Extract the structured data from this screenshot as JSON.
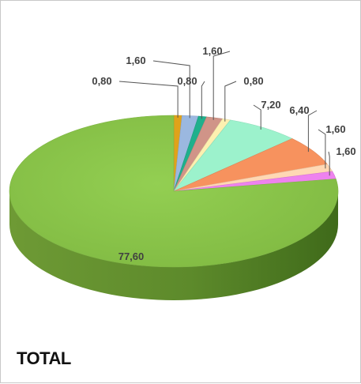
{
  "chart_data": {
    "type": "pie",
    "title": "TOTAL",
    "values": [
      0.8,
      1.6,
      0.8,
      1.6,
      0.8,
      7.2,
      6.4,
      1.6,
      1.6,
      77.6
    ],
    "labels": [
      "0,80",
      "1,60",
      "0,80",
      "1,60",
      "0,80",
      "7,20",
      "6,40",
      "1,60",
      "1,60",
      "77,60"
    ],
    "colors": [
      "#e0a21a",
      "#9bb8e0",
      "#1fb08c",
      "#d09488",
      "#fdf0b0",
      "#9cf2cc",
      "#f7925e",
      "#ffd8b4",
      "#ee82ee",
      "#8cc84b"
    ],
    "start_angle_deg": 270,
    "direction": "clockwise",
    "style": "3d"
  }
}
